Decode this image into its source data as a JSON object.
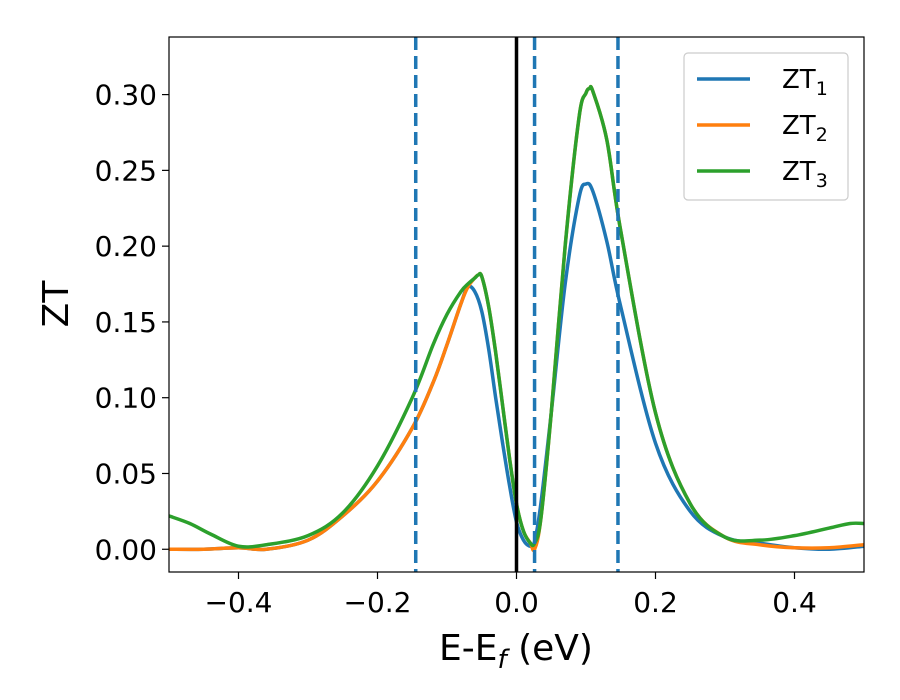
{
  "chart_data": {
    "type": "line",
    "xlabel": {
      "base": "E-E",
      "sub": "f",
      "unit": " (eV)"
    },
    "ylabel": "ZT",
    "xlim": [
      -0.5,
      0.5
    ],
    "ylim": [
      -0.015,
      0.338
    ],
    "xticks": [
      -0.4,
      -0.2,
      0.0,
      0.2,
      0.4
    ],
    "xtick_labels": [
      "−0.4",
      "−0.2",
      "0.0",
      "0.2",
      "0.4"
    ],
    "yticks": [
      0.0,
      0.05,
      0.1,
      0.15,
      0.2,
      0.25,
      0.3
    ],
    "ytick_labels": [
      "0.00",
      "0.05",
      "0.10",
      "0.15",
      "0.20",
      "0.25",
      "0.30"
    ],
    "grid": false,
    "legend_position": "top-right",
    "vertical_lines": [
      {
        "x": 0.0,
        "style": "solid",
        "color": "#000000"
      },
      {
        "x": -0.145,
        "style": "dashed",
        "color": "#1f77b4"
      },
      {
        "x": 0.026,
        "style": "dashed",
        "color": "#1f77b4"
      },
      {
        "x": 0.146,
        "style": "dashed",
        "color": "#1f77b4"
      }
    ],
    "series": [
      {
        "name": "ZT",
        "sub": "1",
        "color": "#1f77b4",
        "x": [
          -0.5,
          -0.45,
          -0.4,
          -0.36,
          -0.3,
          -0.25,
          -0.2,
          -0.15,
          -0.12,
          -0.1,
          -0.08,
          -0.07,
          -0.06,
          -0.05,
          -0.04,
          -0.03,
          -0.02,
          -0.01,
          0.0,
          0.01,
          0.02,
          0.026,
          0.035,
          0.05,
          0.07,
          0.09,
          0.1,
          0.11,
          0.13,
          0.15,
          0.2,
          0.25,
          0.3,
          0.35,
          0.4,
          0.45,
          0.5
        ],
        "y": [
          0.0,
          0.0,
          0.001,
          0.0,
          0.006,
          0.022,
          0.045,
          0.08,
          0.11,
          0.135,
          0.162,
          0.173,
          0.17,
          0.157,
          0.132,
          0.1,
          0.07,
          0.042,
          0.018,
          0.006,
          0.002,
          0.005,
          0.03,
          0.09,
          0.175,
          0.232,
          0.241,
          0.236,
          0.203,
          0.16,
          0.07,
          0.025,
          0.008,
          0.004,
          0.001,
          0.0,
          0.002
        ]
      },
      {
        "name": "ZT",
        "sub": "2",
        "color": "#ff7f0e",
        "x": [
          -0.5,
          -0.45,
          -0.4,
          -0.36,
          -0.3,
          -0.25,
          -0.2,
          -0.15,
          -0.12,
          -0.1,
          -0.08,
          -0.07,
          -0.06,
          -0.055,
          -0.05,
          -0.04,
          -0.03,
          -0.02,
          -0.01,
          0.0,
          0.01,
          0.02,
          0.026,
          0.035,
          0.05,
          0.07,
          0.09,
          0.1,
          0.105,
          0.11,
          0.13,
          0.15,
          0.2,
          0.25,
          0.3,
          0.35,
          0.4,
          0.45,
          0.5
        ],
        "y": [
          0.0,
          0.0,
          0.001,
          0.0,
          0.006,
          0.022,
          0.045,
          0.08,
          0.11,
          0.135,
          0.162,
          0.173,
          0.179,
          0.181,
          0.18,
          0.16,
          0.13,
          0.095,
          0.06,
          0.03,
          0.012,
          0.004,
          0.0,
          0.02,
          0.09,
          0.2,
          0.285,
          0.301,
          0.304,
          0.302,
          0.27,
          0.21,
          0.09,
          0.03,
          0.008,
          0.003,
          0.001,
          0.001,
          0.003
        ]
      },
      {
        "name": "ZT",
        "sub": "3",
        "color": "#2ca02c",
        "x": [
          -0.5,
          -0.47,
          -0.44,
          -0.4,
          -0.36,
          -0.3,
          -0.25,
          -0.2,
          -0.15,
          -0.12,
          -0.1,
          -0.08,
          -0.07,
          -0.06,
          -0.055,
          -0.05,
          -0.04,
          -0.03,
          -0.02,
          -0.01,
          0.0,
          0.01,
          0.02,
          0.026,
          0.035,
          0.05,
          0.07,
          0.09,
          0.1,
          0.105,
          0.11,
          0.13,
          0.15,
          0.2,
          0.25,
          0.3,
          0.35,
          0.4,
          0.45,
          0.48,
          0.5
        ],
        "y": [
          0.022,
          0.017,
          0.01,
          0.002,
          0.003,
          0.009,
          0.024,
          0.055,
          0.1,
          0.135,
          0.155,
          0.17,
          0.175,
          0.179,
          0.181,
          0.18,
          0.16,
          0.13,
          0.095,
          0.06,
          0.03,
          0.012,
          0.004,
          0.004,
          0.02,
          0.09,
          0.2,
          0.285,
          0.301,
          0.304,
          0.302,
          0.27,
          0.21,
          0.09,
          0.03,
          0.008,
          0.006,
          0.009,
          0.014,
          0.017,
          0.017
        ]
      }
    ]
  }
}
